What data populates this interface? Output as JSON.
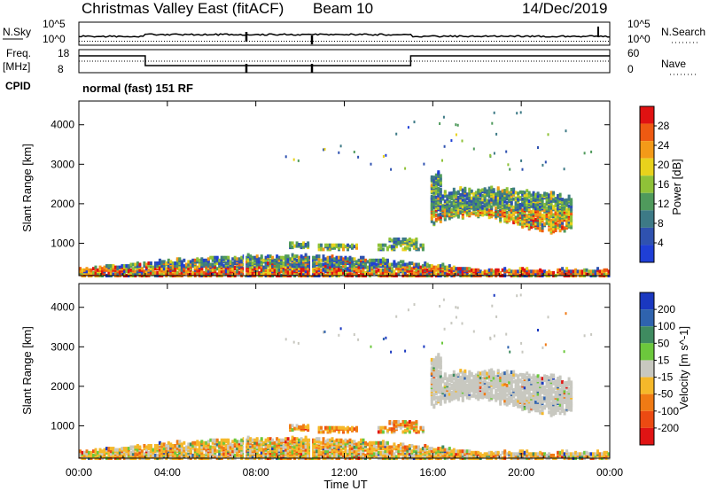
{
  "header": {
    "station": "Christmas Valley East (fitACF)",
    "beam": "Beam 10",
    "date": "14/Dec/2019"
  },
  "summary": {
    "nsky_label": "N.Sky",
    "nsearch_label": "N.Search",
    "nsky_ticks": [
      "10^5",
      "10^0"
    ],
    "nsearch_ticks": [
      "10^5",
      "10^0"
    ],
    "freq_label": "Freq.",
    "freq_unit": "[MHz]",
    "freq_ticks": [
      "18",
      "8"
    ],
    "nave_label": "Nave",
    "nave_ticks": [
      "60",
      "0"
    ],
    "cpid_label": "CPID",
    "cpid_text": "normal (fast) 151 RF"
  },
  "colors": {
    "power": [
      "#1f3fd6",
      "#2f52b0",
      "#3d7a86",
      "#4f9a5c",
      "#8fc238",
      "#e8d21c",
      "#f39a18",
      "#ee5a12",
      "#e01212"
    ],
    "velocity": [
      "#1a38c0",
      "#2f63ae",
      "#3f8b60",
      "#6cc83c",
      "#c8c8c0",
      "#f5b82a",
      "#f07a14",
      "#ec4a12",
      "#e01414"
    ]
  },
  "chart_data": [
    {
      "type": "heatmap",
      "name": "power",
      "ylabel": "Slant Range [km]",
      "yticks": [
        1000,
        2000,
        3000,
        4000
      ],
      "ylim": [
        180,
        4600
      ],
      "xlim": [
        0,
        24
      ],
      "colorbar_label": "Power [dB]",
      "colorbar_ticks": [
        4,
        8,
        12,
        16,
        20,
        24,
        28
      ],
      "colorbar_range": [
        0,
        32
      ]
    },
    {
      "type": "heatmap",
      "name": "velocity",
      "ylabel": "Slant Range [km]",
      "yticks": [
        1000,
        2000,
        3000,
        4000
      ],
      "ylim": [
        180,
        4600
      ],
      "xlim": [
        0,
        24
      ],
      "colorbar_label": "Velocity [m s^-1]",
      "colorbar_ticks": [
        "200",
        "100",
        "50",
        "15",
        "-15",
        "-50",
        "-100",
        "-200"
      ]
    }
  ],
  "xaxis": {
    "label": "Time UT",
    "ticks": [
      "00:00",
      "04:00",
      "08:00",
      "12:00",
      "16:00",
      "20:00",
      "00:00"
    ],
    "tick_hours": [
      0,
      4,
      8,
      12,
      16,
      20,
      24
    ]
  }
}
